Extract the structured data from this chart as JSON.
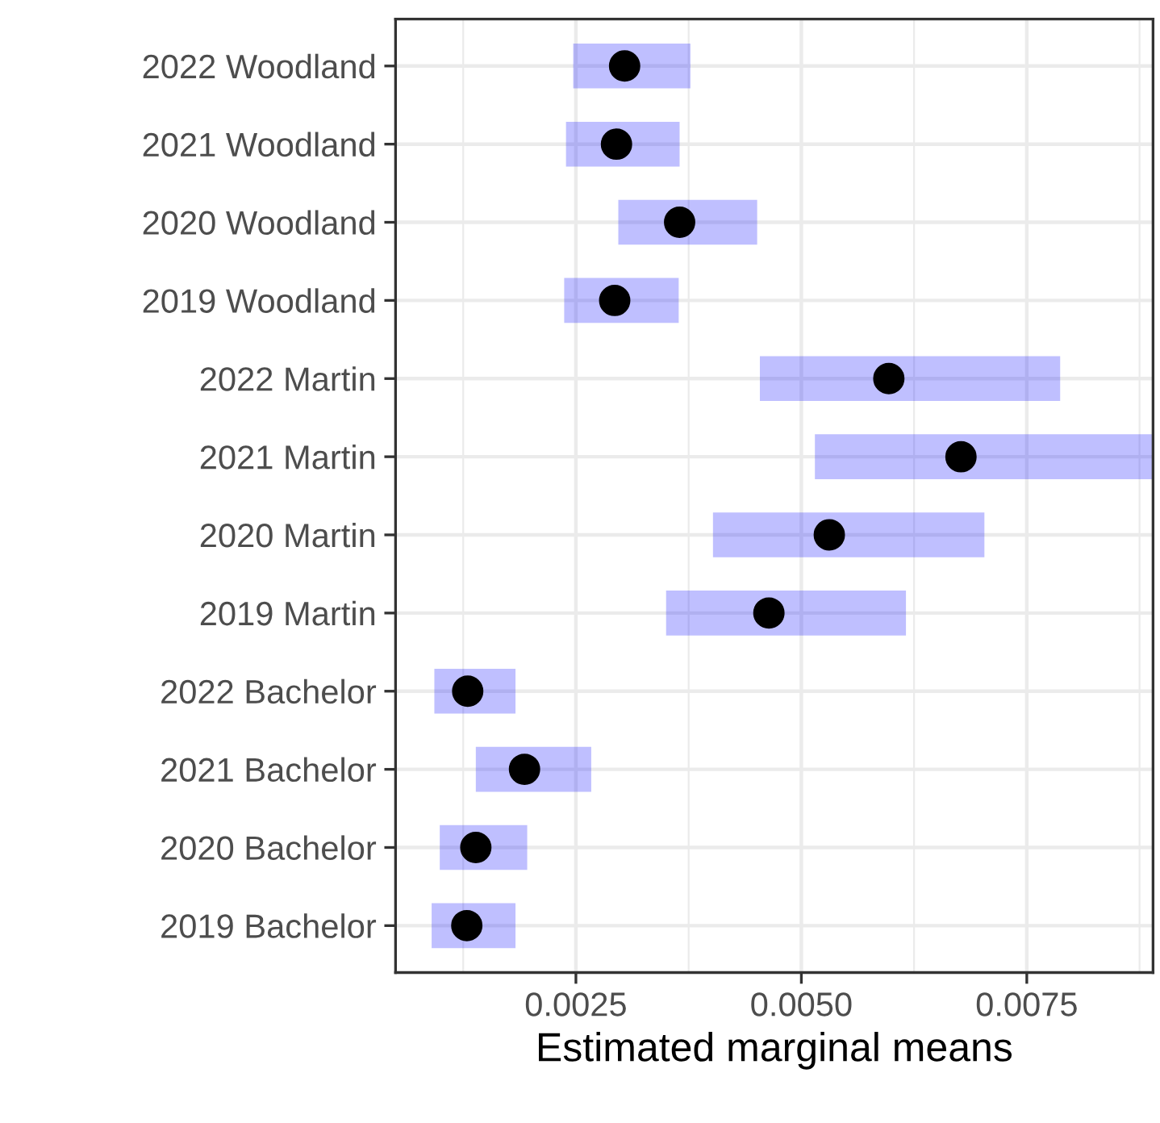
{
  "chart_data": {
    "type": "scatter",
    "orientation": "horizontal",
    "xlabel": "Estimated marginal means",
    "categories": [
      "2022 Woodland",
      "2021 Woodland",
      "2020 Woodland",
      "2019 Woodland",
      "2022 Martin",
      "2021 Martin",
      "2020 Martin",
      "2019 Martin",
      "2022 Bachelor",
      "2021 Bachelor",
      "2020 Bachelor",
      "2019 Bachelor"
    ],
    "values": [
      0.00304,
      0.00295,
      0.00365,
      0.00293,
      0.00597,
      0.00677,
      0.00531,
      0.00464,
      0.0013,
      0.00193,
      0.00139,
      0.00129
    ],
    "errors": [
      [
        0.00247,
        0.00377
      ],
      [
        0.00239,
        0.00365
      ],
      [
        0.00297,
        0.00451
      ],
      [
        0.00237,
        0.00364
      ],
      [
        0.00454,
        0.00787
      ],
      [
        0.00515,
        0.0089
      ],
      [
        0.00402,
        0.00703
      ],
      [
        0.0035,
        0.00616
      ],
      [
        0.00093,
        0.00183
      ],
      [
        0.00139,
        0.00267
      ],
      [
        0.00099,
        0.00196
      ],
      [
        0.0009,
        0.00183
      ]
    ],
    "color": "#000000",
    "xlim": [
      0.0005,
      0.0089
    ],
    "xticks": [
      {
        "value": 0.0025,
        "label": "0.0025"
      },
      {
        "value": 0.005,
        "label": "0.0050"
      },
      {
        "value": 0.0075,
        "label": "0.0075"
      }
    ],
    "grid": true,
    "marker": "circle",
    "legend": false
  }
}
